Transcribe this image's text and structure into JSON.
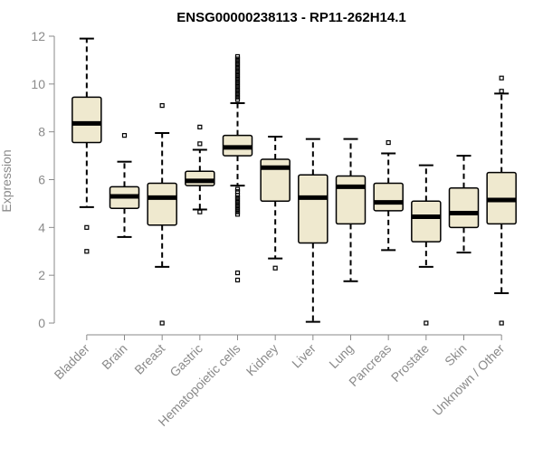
{
  "chart_data": {
    "type": "box",
    "title": "ENSG00000238113 - RP11-262H14.1",
    "xlabel": "",
    "ylabel": "Expression",
    "ylim": [
      0,
      12
    ],
    "yticks": [
      0,
      2,
      4,
      6,
      8,
      10,
      12
    ],
    "grid": false,
    "legend": "none",
    "box_fill_color": "#efe9cf",
    "box_line_color": "#000000",
    "axis_color": "#8a8a8a",
    "categories": [
      "Bladder",
      "Brain",
      "Breast",
      "Gastric",
      "Hematopoietic cells",
      "Kidney",
      "Liver",
      "Lung",
      "Pancreas",
      "Prostate",
      "Skin",
      "Unknown / Other"
    ],
    "boxes": [
      {
        "category": "Bladder",
        "whisker_low": 4.85,
        "q1": 7.55,
        "median": 8.35,
        "q3": 9.45,
        "whisker_high": 11.9,
        "outliers": [
          3.0,
          4.0
        ]
      },
      {
        "category": "Brain",
        "whisker_low": 3.6,
        "q1": 4.8,
        "median": 5.3,
        "q3": 5.7,
        "whisker_high": 6.75,
        "outliers": [
          7.85
        ]
      },
      {
        "category": "Breast",
        "whisker_low": 2.35,
        "q1": 4.1,
        "median": 5.25,
        "q3": 5.85,
        "whisker_high": 7.95,
        "outliers": [
          0.0,
          9.1
        ]
      },
      {
        "category": "Gastric",
        "whisker_low": 4.75,
        "q1": 5.75,
        "median": 5.95,
        "q3": 6.35,
        "whisker_high": 7.25,
        "outliers": [
          4.65,
          7.5,
          8.2
        ]
      },
      {
        "category": "Hematopoietic cells",
        "whisker_low": 5.75,
        "q1": 7.0,
        "median": 7.35,
        "q3": 7.85,
        "whisker_high": 9.2,
        "outliers": [
          1.8,
          2.1,
          4.55,
          4.65,
          4.75,
          4.85,
          4.95,
          5.05,
          5.15,
          5.25,
          5.35,
          5.5,
          5.6,
          9.35,
          9.45,
          9.55,
          9.65,
          9.75,
          9.85,
          9.95,
          10.05,
          10.15,
          10.25,
          10.35,
          10.45,
          10.55,
          10.65,
          10.75,
          10.85,
          10.95,
          11.05,
          11.15
        ]
      },
      {
        "category": "Kidney",
        "whisker_low": 2.7,
        "q1": 5.1,
        "median": 6.5,
        "q3": 6.85,
        "whisker_high": 7.8,
        "outliers": [
          2.3
        ]
      },
      {
        "category": "Liver",
        "whisker_low": 0.05,
        "q1": 3.35,
        "median": 5.25,
        "q3": 6.2,
        "whisker_high": 7.7,
        "outliers": []
      },
      {
        "category": "Lung",
        "whisker_low": 1.75,
        "q1": 4.15,
        "median": 5.7,
        "q3": 6.15,
        "whisker_high": 7.7,
        "outliers": []
      },
      {
        "category": "Pancreas",
        "whisker_low": 3.05,
        "q1": 4.7,
        "median": 5.05,
        "q3": 5.85,
        "whisker_high": 7.1,
        "outliers": [
          7.55
        ]
      },
      {
        "category": "Prostate",
        "whisker_low": 2.35,
        "q1": 3.4,
        "median": 4.45,
        "q3": 5.1,
        "whisker_high": 6.6,
        "outliers": [
          0.0
        ]
      },
      {
        "category": "Skin",
        "whisker_low": 2.95,
        "q1": 4.0,
        "median": 4.6,
        "q3": 5.65,
        "whisker_high": 7.0,
        "outliers": []
      },
      {
        "category": "Unknown / Other",
        "whisker_low": 1.25,
        "q1": 4.15,
        "median": 5.15,
        "q3": 6.3,
        "whisker_high": 9.6,
        "outliers": [
          0.0,
          9.7,
          10.25
        ]
      }
    ]
  }
}
